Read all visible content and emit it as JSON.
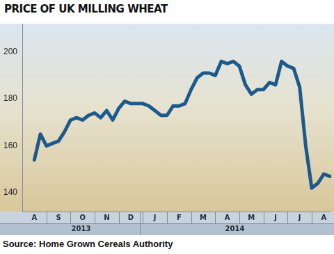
{
  "chart_data": {
    "type": "line",
    "title": "PRICE OF UK MILLING WHEAT",
    "source": "Source: Home Grown Cereals Authority",
    "categories": [
      null,
      null,
      "A",
      null,
      null,
      null,
      "S",
      null,
      null,
      null,
      "O",
      null,
      null,
      null,
      "N",
      null,
      null,
      null,
      "D",
      null,
      null,
      null,
      "J",
      null,
      null,
      null,
      "F",
      null,
      null,
      null,
      "M",
      null,
      null,
      null,
      "A",
      null,
      null,
      null,
      "M",
      null,
      null,
      null,
      "J",
      null,
      null,
      null,
      "J",
      null,
      null,
      null,
      "A",
      null
    ],
    "years": [
      "2013",
      "2013",
      "2013",
      "2013",
      "2013",
      "2013",
      "2013",
      "2013",
      "2013",
      "2013",
      "2013",
      "2013",
      "2013",
      "2013",
      "2013",
      "2013",
      "2013",
      "2013",
      "2013",
      "2013",
      "2014",
      "2014",
      "2014",
      "2014",
      "2014",
      "2014",
      "2014",
      "2014",
      "2014",
      "2014",
      "2014",
      "2014",
      "2014",
      "2014",
      "2014",
      "2014",
      "2014",
      "2014",
      "2014",
      "2014",
      "2014",
      "2014",
      "2014",
      "2014",
      "2014",
      "2014",
      "2014",
      "2014",
      "2014",
      "2014",
      "2014",
      "2014"
    ],
    "values": [
      null,
      null,
      154,
      165,
      160,
      161,
      162,
      166,
      171,
      172,
      171,
      173,
      174,
      172,
      175,
      171,
      176,
      179,
      178,
      178,
      178,
      177,
      175,
      173,
      173,
      177,
      177,
      178,
      184,
      189,
      191,
      191,
      190,
      196,
      195,
      196,
      194,
      186,
      182,
      184,
      184,
      187,
      186,
      196,
      194,
      193,
      185,
      160,
      142,
      144,
      148,
      147
    ],
    "color": "#1d5a8c",
    "ylim": [
      132,
      212
    ],
    "yticks": [
      140,
      160,
      180,
      200
    ],
    "grid": false
  }
}
